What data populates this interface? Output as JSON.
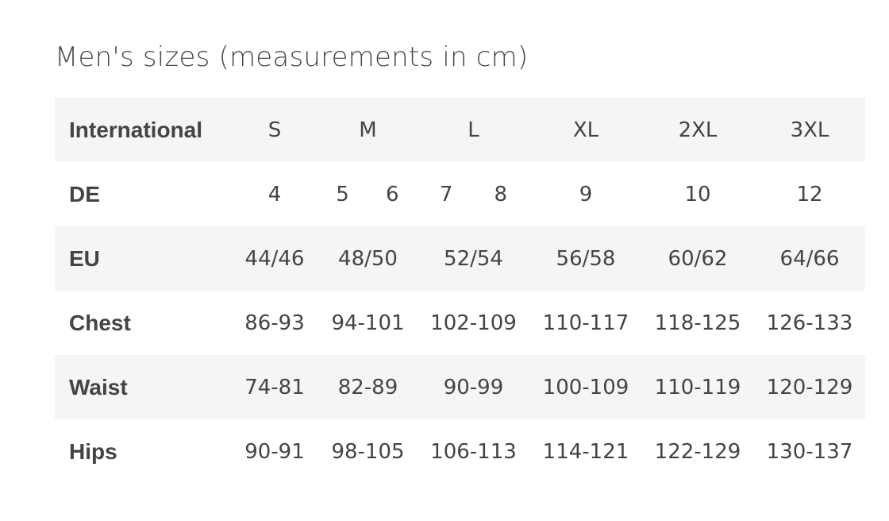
{
  "title": "Men's sizes (measurements in cm)",
  "rows": [
    {
      "label": "International",
      "values": [
        "S",
        "M",
        "L",
        "XL",
        "2XL",
        "3XL"
      ]
    },
    {
      "label": "DE",
      "values": [
        "4",
        [
          "5",
          "6"
        ],
        [
          "7",
          "8"
        ],
        "9",
        "10",
        "12"
      ]
    },
    {
      "label": "EU",
      "values": [
        "44/46",
        "48/50",
        "52/54",
        "56/58",
        "60/62",
        "64/66"
      ]
    },
    {
      "label": "Chest",
      "values": [
        "86-93",
        "94-101",
        "102-109",
        "110-117",
        "118-125",
        "126-133"
      ]
    },
    {
      "label": "Waist",
      "values": [
        "74-81",
        "82-89",
        "90-99",
        "100-109",
        "110-119",
        "120-129"
      ]
    },
    {
      "label": "Hips",
      "values": [
        "90-91",
        "98-105",
        "106-113",
        "114-121",
        "122-129",
        "130-137"
      ]
    }
  ],
  "colors": {
    "text": "#444444",
    "row_shade": "#f5f5f5"
  }
}
